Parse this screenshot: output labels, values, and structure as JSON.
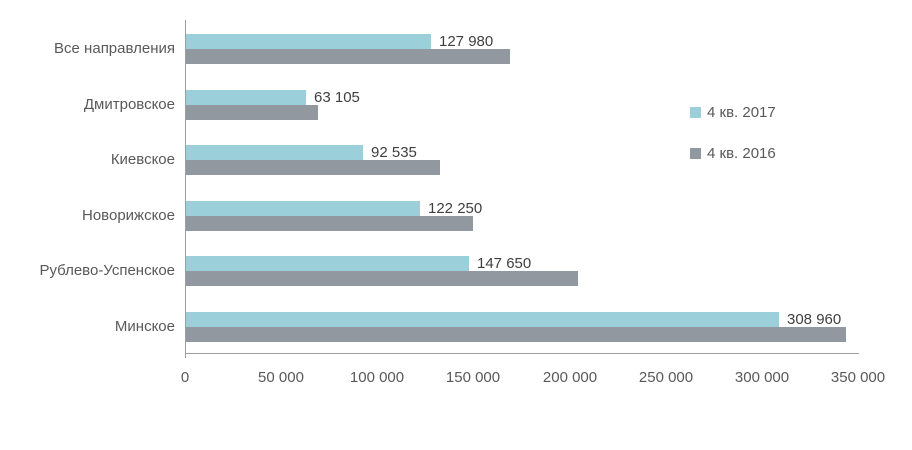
{
  "chart_data": {
    "type": "bar",
    "orientation": "horizontal",
    "title": "",
    "xlabel": "",
    "ylabel": "",
    "grid": false,
    "legend_position": "right",
    "categories": [
      "Все направления",
      "Дмитровское",
      "Киевское",
      "Новорижское",
      "Рублево-Успенское",
      "Минское"
    ],
    "series": [
      {
        "name": "4 кв. 2017",
        "color": "#9bcfd9",
        "values": [
          127980,
          63105,
          92535,
          122250,
          147650,
          308960
        ],
        "value_labels": [
          "127 980",
          "63 105",
          "92 535",
          "122 250",
          "147 650",
          "308 960"
        ]
      },
      {
        "name": "4 кв. 2016",
        "color": "#91989f",
        "values": [
          169000,
          69000,
          132500,
          150000,
          204500,
          344000
        ],
        "value_labels": [
          "",
          "",
          "",
          "",
          "",
          ""
        ]
      }
    ],
    "xlim": [
      0,
      350000
    ],
    "x_ticks": [
      {
        "value": 0,
        "label": "0"
      },
      {
        "value": 50000,
        "label": "50 000"
      },
      {
        "value": 100000,
        "label": "100 000"
      },
      {
        "value": 150000,
        "label": "150 000"
      },
      {
        "value": 200000,
        "label": "200 000"
      },
      {
        "value": 250000,
        "label": "250 000"
      },
      {
        "value": 300000,
        "label": "300 000"
      },
      {
        "value": 350000,
        "label": "350 000"
      }
    ],
    "axis_color": "#9e9e9e",
    "label_color": "#595959",
    "value_label_color": "#3f3f3f"
  }
}
